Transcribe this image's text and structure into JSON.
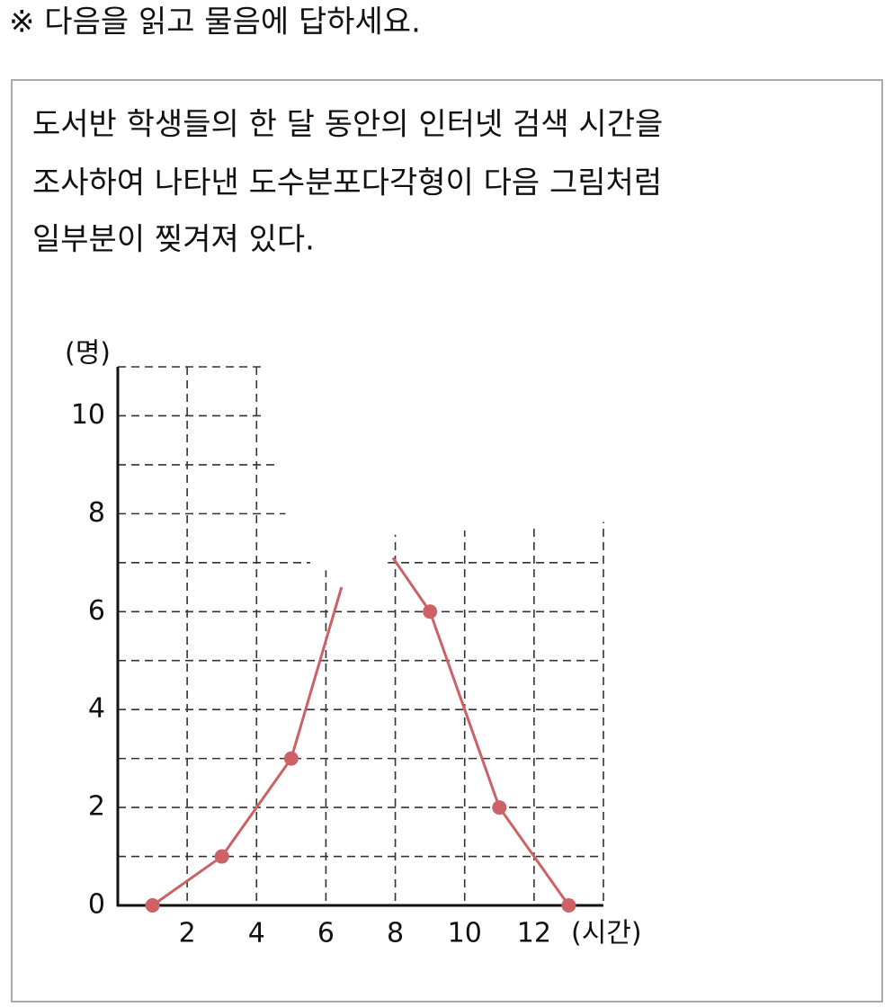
{
  "header": {
    "title": "※ 다음을 읽고 물음에 답하세요."
  },
  "problem": {
    "lines": [
      "도서반 학생들의 한 달 동안의 인터넷 검색 시간을",
      "조사하여 나타낸 도수분포다각형이 다음 그림처럼",
      "일부분이 찢겨져 있다."
    ]
  },
  "chart_data": {
    "type": "line",
    "y_label": "(명)",
    "x_label": "(시간)",
    "xlim": [
      0,
      14
    ],
    "ylim": [
      0,
      11
    ],
    "xticks": [
      2,
      4,
      6,
      8,
      10,
      12
    ],
    "yticks": [
      0,
      2,
      4,
      6,
      8,
      10
    ],
    "xgrid": [
      2,
      4,
      6,
      8,
      10,
      12,
      14
    ],
    "ygrid": [
      1,
      2,
      3,
      4,
      5,
      6,
      7,
      8,
      9,
      10,
      11
    ],
    "grid": true,
    "series": [
      {
        "type": "line",
        "color": "#cc6166",
        "x": [
          1,
          3,
          5,
          6.45,
          7.2,
          7.93,
          9,
          11,
          13
        ],
        "values": [
          0,
          1,
          3,
          6.5,
          null,
          7.1,
          6,
          2,
          0
        ]
      },
      {
        "type": "scatter",
        "color": "#cc6166",
        "x": [
          1,
          3,
          5,
          9,
          11,
          13
        ],
        "values": [
          0,
          1,
          3,
          6,
          2,
          0
        ]
      }
    ]
  }
}
